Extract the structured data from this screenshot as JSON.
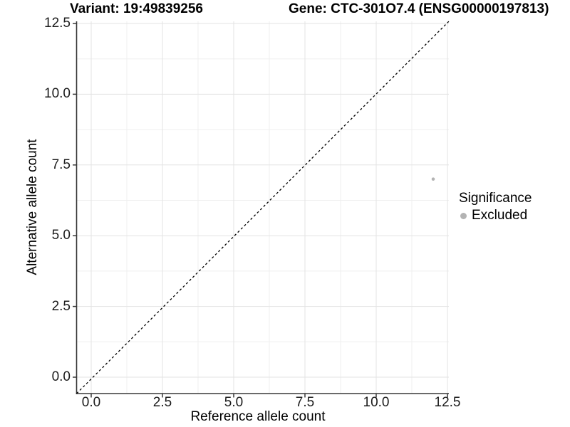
{
  "chart_data": {
    "type": "scatter",
    "titles": {
      "left": "Variant: 19:49839256",
      "right": "Gene: CTC-301O7.4 (ENSG00000197813)"
    },
    "xlabel": "Reference allele count",
    "ylabel": "Alternative allele count",
    "axis_ticks": {
      "values": [
        0,
        2.5,
        5,
        7.5,
        10,
        12.5
      ],
      "labels": [
        "0.0",
        "2.5",
        "5.0",
        "7.5",
        "10.0",
        "12.5"
      ],
      "minor_values": [
        1.25,
        3.75,
        6.25,
        8.75,
        11.25
      ]
    },
    "xlim": [
      -0.55,
      12.55
    ],
    "ylim": [
      -0.55,
      12.58
    ],
    "grid": "major+minor",
    "reference_line": {
      "type": "identity",
      "equation": "y = x",
      "style": "dashed",
      "color": "#000000"
    },
    "series": [
      {
        "name": "Excluded",
        "color": "#b3b3b3",
        "points": [
          {
            "x": 12,
            "y": 7
          }
        ]
      }
    ],
    "legend": {
      "title": "Significance",
      "position": "right",
      "entries": [
        {
          "label": "Excluded",
          "color": "#b3b3b3"
        }
      ]
    },
    "colors": {
      "background": "#ffffff",
      "panel_background": "#ffffff",
      "grid_major": "#e3e3e3",
      "grid_minor": "#efefef",
      "axis_line": "#383838",
      "point": "#b3b3b3"
    }
  }
}
